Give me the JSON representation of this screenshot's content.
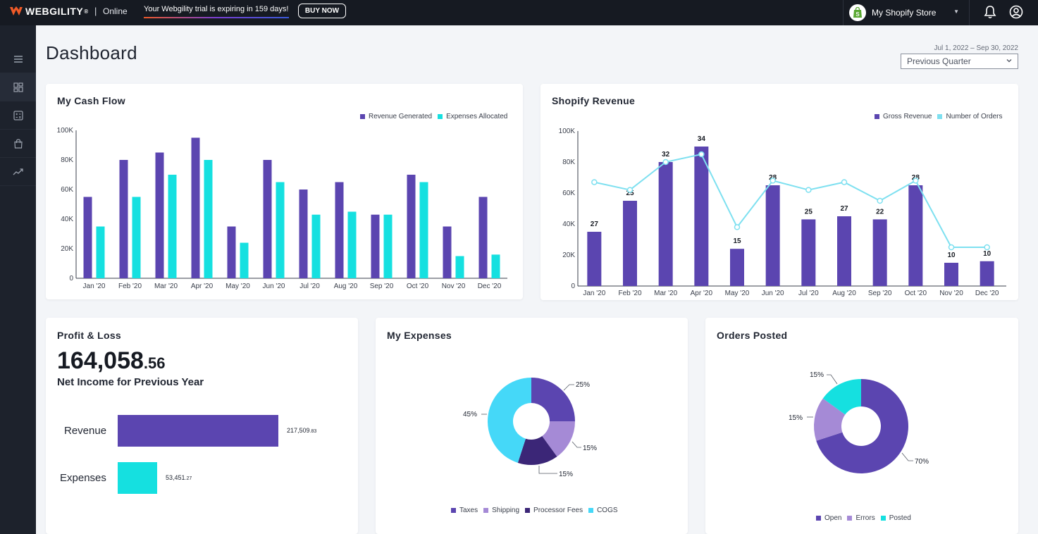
{
  "topbar": {
    "brand": "WEBGILITY",
    "brand_mark": "®",
    "separator": "|",
    "mode": "Online",
    "trial_text": "Your Webgility trial is expiring in 159 days!",
    "buy_label": "BUY NOW",
    "store_name": "My Shopify Store"
  },
  "header": {
    "title": "Dashboard",
    "date_range": "Jul 1, 2022 – Sep 30, 2022",
    "period": "Previous Quarter"
  },
  "sidebar": {
    "items": [
      "menu-icon",
      "dashboard-icon",
      "calculator-icon",
      "bag-icon",
      "trend-icon"
    ]
  },
  "colors": {
    "purple": "#5b45b0",
    "cyan": "#15e0e0",
    "light_blue": "#7ee0f0",
    "lavender": "#a58ad6",
    "dark_purple": "#3b2677",
    "sky": "#45d8f8"
  },
  "chart_data": [
    {
      "type": "bar",
      "title": "My Cash Flow",
      "categories": [
        "Jan '20",
        "Feb '20",
        "Mar '20",
        "Apr '20",
        "May '20",
        "Jun '20",
        "Jul '20",
        "Aug '20",
        "Sep '20",
        "Oct '20",
        "Nov '20",
        "Dec '20"
      ],
      "series": [
        {
          "name": "Revenue Generated",
          "values": [
            55,
            80,
            85,
            95,
            35,
            80,
            60,
            65,
            43,
            70,
            35,
            55
          ]
        },
        {
          "name": "Expenses Allocated",
          "values": [
            35,
            55,
            70,
            80,
            24,
            65,
            43,
            45,
            43,
            65,
            15,
            16
          ]
        }
      ],
      "y_ticks": [
        "100K",
        "80K",
        "60K",
        "40K",
        "20K",
        "0"
      ],
      "ylim": [
        0,
        100
      ],
      "legend": "top-right"
    },
    {
      "type": "bar",
      "title": "Shopify Revenue",
      "categories": [
        "Jan '20",
        "Feb '20",
        "Mar '20",
        "Apr '20",
        "May '20",
        "Jun '20",
        "Jul '20",
        "Aug '20",
        "Sep '20",
        "Oct '20",
        "Nov '20",
        "Dec '20"
      ],
      "series": [
        {
          "name": "Gross Revenue",
          "values": [
            35,
            55,
            80,
            90,
            24,
            65,
            43,
            45,
            43,
            65,
            15,
            16
          ]
        },
        {
          "name": "Number of Orders",
          "values": [
            67,
            62,
            80,
            85,
            38,
            68,
            62,
            67,
            55,
            68,
            25,
            25
          ]
        }
      ],
      "bar_labels": [
        "27",
        "25",
        "32",
        "34",
        "15",
        "28",
        "25",
        "27",
        "22",
        "28",
        "10",
        "10"
      ],
      "y_ticks": [
        "100K",
        "80K",
        "60K",
        "40K",
        "20K",
        "0"
      ],
      "ylim": [
        0,
        100
      ],
      "legend": "top-right"
    },
    {
      "type": "pie",
      "title": "My Expenses",
      "labels": [
        "Taxes",
        "Shipping",
        "Processor Fees",
        "COGS"
      ],
      "values": [
        25,
        15,
        15,
        45
      ],
      "value_labels": [
        "25%",
        "15%",
        "15%",
        "45%"
      ]
    },
    {
      "type": "pie",
      "title": "Orders Posted",
      "labels": [
        "Open",
        "Errors",
        "Posted"
      ],
      "values": [
        70,
        15,
        15
      ],
      "value_labels": [
        "70%",
        "15%",
        "15%"
      ]
    }
  ],
  "profit_loss": {
    "title": "Profit & Loss",
    "value_main": "164,058",
    "value_cents": ".56",
    "subtitle": "Net Income for Previous Year",
    "revenue_label": "Revenue",
    "revenue_value": "217,509",
    "revenue_cents": ".83",
    "revenue_fraction": 1.0,
    "expenses_label": "Expenses",
    "expenses_value": "53,451",
    "expenses_cents": ".27",
    "expenses_fraction": 0.246
  }
}
